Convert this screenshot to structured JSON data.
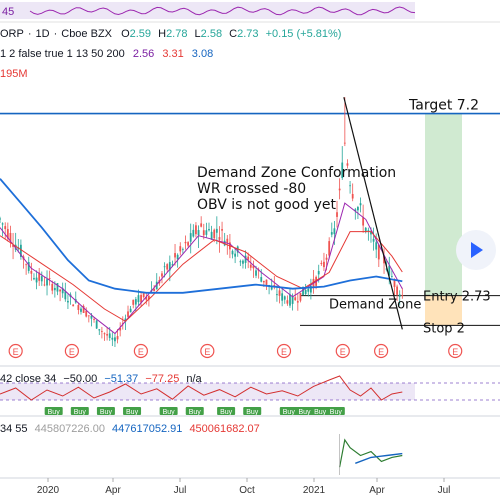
{
  "header": {
    "symbol": "ORP",
    "interval": "1D",
    "exchange": "Cboe BZX",
    "ohlc": {
      "o_label": "O",
      "o": "2.59",
      "h_label": "H",
      "h": "2.78",
      "l_label": "L",
      "l": "2.58",
      "c_label": "C",
      "c": "2.73",
      "change": "+0.15 (+5.81%)"
    },
    "indicator_params": "1 2 false true 1 13 50 200",
    "indicator_values": [
      "2.56",
      "3.31",
      "3.08"
    ],
    "indicator_colors": [
      "#7b1fa2",
      "#e53935",
      "#1565c0"
    ],
    "volume_value": "195M",
    "top_strip_value": "45"
  },
  "colors": {
    "up": "#26a69a",
    "down": "#ef5350",
    "ma_fast": "#9c27b0",
    "ma_mid": "#e53935",
    "ma_slow": "#1e6fd9",
    "target_line": "#1565c0",
    "profit_zone": "#c8e6c9",
    "loss_zone": "#ffe0b2",
    "wr_line": "#d32f2f",
    "obv_line": "#2e7d32",
    "obv_ma": "#1565c0"
  },
  "chart_data": {
    "type": "candlestick",
    "x": [
      "2020",
      "Apr",
      "Jul",
      "Oct",
      "2021",
      "Apr",
      "Jul"
    ],
    "ylim": [
      1.0,
      8.0
    ],
    "close_series": [
      {
        "t": 0,
        "y": 4.6
      },
      {
        "t": 4,
        "y": 4.2
      },
      {
        "t": 8,
        "y": 3.8
      },
      {
        "t": 12,
        "y": 3.3
      },
      {
        "t": 16,
        "y": 3.1
      },
      {
        "t": 20,
        "y": 3.0
      },
      {
        "t": 24,
        "y": 2.8
      },
      {
        "t": 28,
        "y": 2.6
      },
      {
        "t": 32,
        "y": 2.4
      },
      {
        "t": 36,
        "y": 2.1
      },
      {
        "t": 40,
        "y": 1.8
      },
      {
        "t": 44,
        "y": 1.6
      },
      {
        "t": 48,
        "y": 2.2
      },
      {
        "t": 52,
        "y": 2.6
      },
      {
        "t": 56,
        "y": 2.7
      },
      {
        "t": 60,
        "y": 3.0
      },
      {
        "t": 64,
        "y": 3.4
      },
      {
        "t": 68,
        "y": 3.7
      },
      {
        "t": 72,
        "y": 4.0
      },
      {
        "t": 76,
        "y": 4.4
      },
      {
        "t": 80,
        "y": 4.3
      },
      {
        "t": 84,
        "y": 4.3
      },
      {
        "t": 88,
        "y": 4.0
      },
      {
        "t": 92,
        "y": 3.7
      },
      {
        "t": 96,
        "y": 3.5
      },
      {
        "t": 100,
        "y": 3.2
      },
      {
        "t": 104,
        "y": 2.9
      },
      {
        "t": 108,
        "y": 2.7
      },
      {
        "t": 112,
        "y": 2.6
      },
      {
        "t": 116,
        "y": 2.8
      },
      {
        "t": 120,
        "y": 3.0
      },
      {
        "t": 124,
        "y": 3.5
      },
      {
        "t": 128,
        "y": 4.3
      },
      {
        "t": 130,
        "y": 5.2
      },
      {
        "t": 132,
        "y": 6.5
      },
      {
        "t": 134,
        "y": 5.6
      },
      {
        "t": 136,
        "y": 5.0
      },
      {
        "t": 138,
        "y": 4.8
      },
      {
        "t": 140,
        "y": 4.4
      },
      {
        "t": 144,
        "y": 3.9
      },
      {
        "t": 148,
        "y": 3.5
      },
      {
        "t": 150,
        "y": 3.2
      },
      {
        "t": 152,
        "y": 2.9
      },
      {
        "t": 154,
        "y": 2.73
      }
    ],
    "moving_averages": [
      {
        "name": "2.56",
        "points": [
          [
            0,
            4.4
          ],
          [
            12,
            3.4
          ],
          [
            24,
            2.9
          ],
          [
            36,
            2.2
          ],
          [
            44,
            1.8
          ],
          [
            52,
            2.4
          ],
          [
            64,
            3.3
          ],
          [
            76,
            4.2
          ],
          [
            88,
            4.0
          ],
          [
            100,
            3.3
          ],
          [
            112,
            2.7
          ],
          [
            124,
            3.2
          ],
          [
            132,
            5.0
          ],
          [
            140,
            4.6
          ],
          [
            148,
            3.6
          ],
          [
            154,
            2.9
          ]
        ]
      },
      {
        "name": "3.31",
        "points": [
          [
            0,
            4.2
          ],
          [
            14,
            3.6
          ],
          [
            28,
            3.0
          ],
          [
            40,
            2.4
          ],
          [
            48,
            2.1
          ],
          [
            58,
            2.7
          ],
          [
            70,
            3.5
          ],
          [
            82,
            4.1
          ],
          [
            94,
            3.8
          ],
          [
            106,
            3.2
          ],
          [
            116,
            2.9
          ],
          [
            126,
            3.3
          ],
          [
            134,
            4.3
          ],
          [
            142,
            4.3
          ],
          [
            150,
            3.7
          ],
          [
            154,
            3.31
          ]
        ]
      },
      {
        "name": "3.08",
        "points": [
          [
            0,
            5.6
          ],
          [
            8,
            5.0
          ],
          [
            16,
            4.4
          ],
          [
            26,
            3.6
          ],
          [
            34,
            3.1
          ],
          [
            44,
            2.9
          ],
          [
            56,
            2.8
          ],
          [
            70,
            2.8
          ],
          [
            84,
            2.9
          ],
          [
            98,
            3.0
          ],
          [
            112,
            2.9
          ],
          [
            124,
            2.95
          ],
          [
            134,
            3.1
          ],
          [
            144,
            3.2
          ],
          [
            154,
            3.08
          ]
        ]
      }
    ],
    "trade": {
      "target": 7.2,
      "entry": 2.73,
      "stop": 2.0,
      "target_label": "Target 7.2",
      "entry_label": "Entry 2.73",
      "stop_label": "Stop 2"
    },
    "annotations": [
      "Demand Zone Conformation",
      "WR crossed -80",
      "OBV is not good yet"
    ],
    "demand_zone_label": "Demand Zone",
    "earnings_marker": "E",
    "earnings_at": [
      3,
      25,
      52,
      78,
      108,
      131,
      146,
      175
    ],
    "wr": {
      "label": "42 close 34",
      "values": [
        "−50.00",
        "−51.37",
        "−77.25",
        "n/a"
      ],
      "points": [
        [
          0,
          -55
        ],
        [
          6,
          -40
        ],
        [
          12,
          -70
        ],
        [
          18,
          -45
        ],
        [
          24,
          -60
        ],
        [
          30,
          -38
        ],
        [
          36,
          -65
        ],
        [
          42,
          -50
        ],
        [
          48,
          -30
        ],
        [
          54,
          -55
        ],
        [
          60,
          -42
        ],
        [
          66,
          -68
        ],
        [
          72,
          -35
        ],
        [
          78,
          -58
        ],
        [
          84,
          -44
        ],
        [
          90,
          -62
        ],
        [
          96,
          -38
        ],
        [
          102,
          -55
        ],
        [
          108,
          -47
        ],
        [
          114,
          -60
        ],
        [
          120,
          -36
        ],
        [
          126,
          -20
        ],
        [
          130,
          -10
        ],
        [
          134,
          -45
        ],
        [
          138,
          -60
        ],
        [
          142,
          -40
        ],
        [
          146,
          -70
        ],
        [
          150,
          -55
        ],
        [
          154,
          -50
        ]
      ],
      "buy_markers": [
        6,
        16,
        26,
        36,
        50,
        60,
        72,
        82,
        96,
        102,
        108,
        114
      ]
    },
    "obv": {
      "label": "34 55",
      "values": [
        "445807226.00",
        "447617052.91",
        "450061682.07"
      ],
      "points": [
        [
          130,
          0.2
        ],
        [
          132,
          0.9
        ],
        [
          134,
          0.7
        ],
        [
          138,
          0.5
        ],
        [
          142,
          0.6
        ],
        [
          146,
          0.35
        ],
        [
          150,
          0.45
        ],
        [
          154,
          0.5
        ]
      ],
      "ma_points": [
        [
          136,
          0.3
        ],
        [
          142,
          0.45
        ],
        [
          148,
          0.5
        ],
        [
          154,
          0.55
        ]
      ]
    },
    "buy_label": "Buy"
  }
}
